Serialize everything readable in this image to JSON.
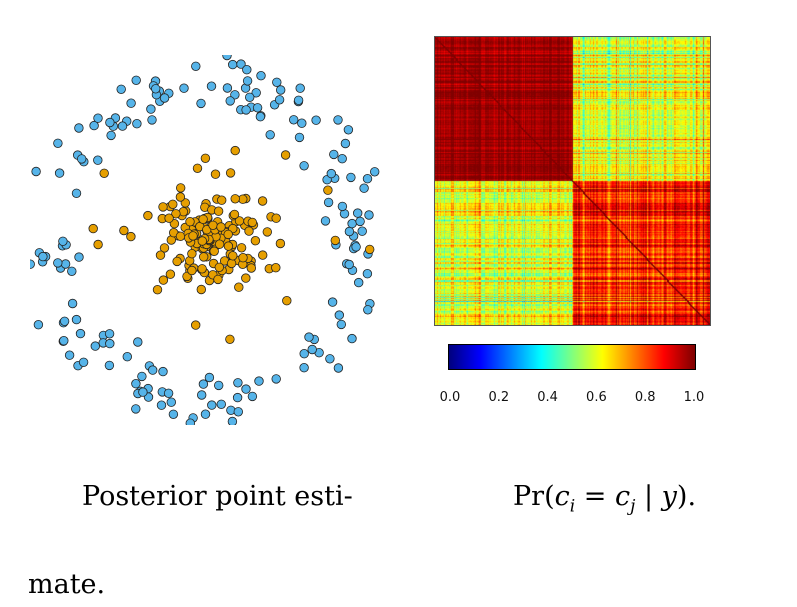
{
  "colors": {
    "outer_ring_points": "#56b4e9",
    "inner_cluster_points": "#e69f00",
    "point_outline": "#222222"
  },
  "chart_data": [
    {
      "type": "scatter",
      "title": "",
      "series": [
        {
          "name": "",
          "color": "#56b4e9",
          "description_shape": "ring",
          "count": 180
        },
        {
          "name": "",
          "color": "#e69f00",
          "description_shape": "disc",
          "count": 180
        }
      ]
    },
    {
      "type": "heatmap",
      "title": "",
      "colorbar": {
        "ticks": [
          "0.0",
          "0.2",
          "0.4",
          "0.6",
          "0.8",
          "1.0"
        ],
        "range": [
          0,
          1
        ],
        "colormap": "jet"
      },
      "blocks": [
        {
          "region": "top-left",
          "level": 0.97
        },
        {
          "region": "bottom-right",
          "level": 0.85
        },
        {
          "region": "off-diagonal",
          "level": 0.6
        }
      ]
    }
  ],
  "captions": {
    "left_line1": "Posterior point esti-",
    "left_line2": "mate.",
    "right": "Pr(c_i = c_j | y)."
  }
}
